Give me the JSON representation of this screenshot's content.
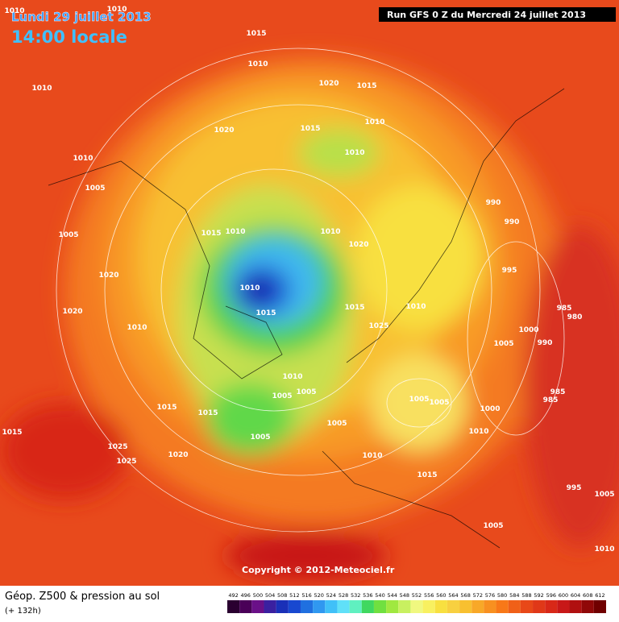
{
  "header": {
    "date": "Lundi 29 juillet 2013",
    "time": "14:00 locale",
    "run": "Run GFS 0 Z du Mercredi 24 juillet 2013"
  },
  "map": {
    "copyright": "Copyright © 2012-Meteociel.fr",
    "isobar_labels": [
      "1010",
      "1010",
      "1015",
      "1010",
      "1010",
      "1020",
      "1015",
      "1010",
      "1015",
      "1020",
      "1010",
      "1010",
      "1005",
      "990",
      "990",
      "1005",
      "1015",
      "1010",
      "1010",
      "1020",
      "995",
      "1020",
      "1010",
      "1015",
      "1015",
      "1010",
      "985",
      "980",
      "1020",
      "1010",
      "1025",
      "1000",
      "1005",
      "990",
      "1010",
      "1005",
      "1005",
      "1005",
      "1005",
      "985",
      "985",
      "1015",
      "1015",
      "1000",
      "1005",
      "1015",
      "1005",
      "1010",
      "1025",
      "1010",
      "1025",
      "1020",
      "1015",
      "995",
      "1005",
      "1005",
      "1010"
    ]
  },
  "footer": {
    "title": "Géop. Z500 & pression au sol",
    "lead": "(+ 132h)"
  },
  "legend": {
    "values": [
      492,
      496,
      500,
      504,
      508,
      512,
      516,
      520,
      524,
      528,
      532,
      536,
      540,
      544,
      548,
      552,
      556,
      560,
      564,
      568,
      572,
      576,
      580,
      584,
      588,
      592,
      596,
      600,
      604,
      608,
      612
    ],
    "colors": [
      "#2a0030",
      "#4a0058",
      "#6a1088",
      "#3a20a0",
      "#1a30b8",
      "#1848d0",
      "#2070e0",
      "#3098f0",
      "#40c0f8",
      "#60e0f8",
      "#60f0c0",
      "#40d860",
      "#70e040",
      "#a0e840",
      "#c8f060",
      "#f0f880",
      "#f8f060",
      "#f8e040",
      "#f8d040",
      "#f8c030",
      "#f8a828",
      "#f89020",
      "#f87818",
      "#f06018",
      "#e84818",
      "#e03818",
      "#d82818",
      "#c81818",
      "#b01010",
      "#900808",
      "#700000"
    ]
  }
}
